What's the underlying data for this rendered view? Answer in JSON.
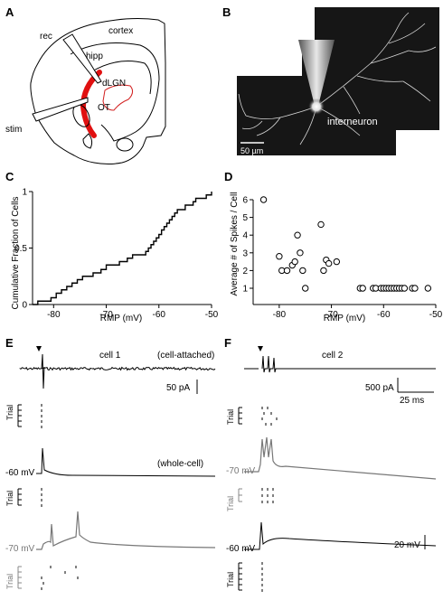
{
  "panels": {
    "A": {
      "letter": "A",
      "labels": {
        "rec": "rec",
        "cortex": "cortex",
        "hipp": "hipp",
        "dlgn": "dLGN",
        "ot": "OT",
        "stim": "stim"
      }
    },
    "B": {
      "letter": "B",
      "caption": "interneuron",
      "scalebar": "50 µm"
    },
    "E": {
      "letter": "E",
      "cell": "cell 1",
      "mode_top": "(cell-attached)",
      "mode_mid": "(whole-cell)",
      "scale_current": "50 pA",
      "vm1": "-60 mV",
      "vm2": "-70 mV",
      "trial": "Trial"
    },
    "F": {
      "letter": "F",
      "cell": "cell 2",
      "scale_current": "500 pA",
      "scale_time": "25 ms",
      "scale_voltage": "20 mV",
      "vm1": "-70 mV",
      "vm2": "-60 mV",
      "trial": "Trial"
    }
  },
  "chart_data": [
    {
      "panel": "C",
      "type": "line",
      "step": true,
      "xlabel": "RMP (mV)",
      "ylabel": "Cumulative Fraction of Cells",
      "xlim": [
        -84,
        -50
      ],
      "ylim": [
        0,
        1
      ],
      "xticks": [
        -80,
        -70,
        -60,
        -50
      ],
      "yticks": [
        0,
        0.5,
        1
      ],
      "series": [
        {
          "x": [
            -83,
            -80.5,
            -79.5,
            -78.5,
            -77.5,
            -76.5,
            -75.5,
            -74.5,
            -72.5,
            -71,
            -70,
            -67.5,
            -66,
            -65,
            -62.5,
            -62,
            -61.5,
            -61,
            -60.5,
            -60,
            -59.5,
            -59,
            -58.5,
            -58,
            -57.5,
            -57,
            -56.5,
            -55,
            -53.5,
            -53,
            -51
          ],
          "y": [
            0.03,
            0.06,
            0.1,
            0.13,
            0.16,
            0.19,
            0.22,
            0.25,
            0.28,
            0.31,
            0.35,
            0.38,
            0.41,
            0.44,
            0.47,
            0.5,
            0.53,
            0.56,
            0.59,
            0.62,
            0.66,
            0.69,
            0.72,
            0.75,
            0.78,
            0.81,
            0.84,
            0.88,
            0.91,
            0.94,
            0.97
          ]
        }
      ]
    },
    {
      "panel": "D",
      "type": "scatter",
      "xlabel": "RMP (mV)",
      "ylabel": "Average # of Spikes / Cell",
      "xlim": [
        -85,
        -50
      ],
      "ylim": [
        1,
        6
      ],
      "xticks": [
        -80,
        -70,
        -60,
        -50
      ],
      "yticks": [
        1,
        2,
        3,
        4,
        5,
        6
      ],
      "series": [
        {
          "x": [
            -83,
            -80,
            -79.5,
            -78.5,
            -77.5,
            -77,
            -76.5,
            -76,
            -75.5,
            -75,
            -72,
            -71.5,
            -71,
            -70.5,
            -69,
            -64.5,
            -64,
            -62,
            -61.5,
            -60.5,
            -60,
            -59.5,
            -59,
            -58.5,
            -58,
            -57.5,
            -57,
            -56.5,
            -56,
            -54.5,
            -54,
            -51.5
          ],
          "y": [
            6,
            2.8,
            2,
            2,
            2.3,
            2.5,
            4,
            3,
            2,
            1,
            4.6,
            2,
            2.6,
            2.4,
            2.5,
            1,
            1,
            1,
            1,
            1,
            1,
            1,
            1,
            1,
            1,
            1,
            1,
            1,
            1,
            1,
            1,
            1
          ]
        }
      ]
    }
  ]
}
